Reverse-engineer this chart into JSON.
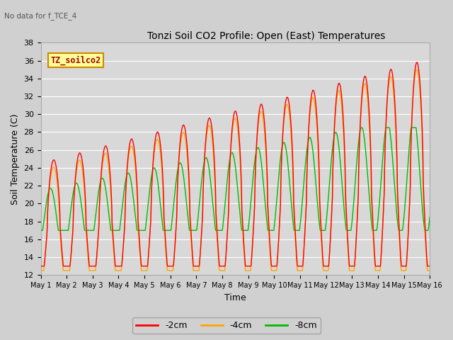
{
  "title": "Tonzi Soil CO2 Profile: Open (East) Temperatures",
  "no_data_text": "No data for f_TCE_4",
  "box_label": "TZ_soilco2",
  "xlabel": "Time",
  "ylabel": "Soil Temperature (C)",
  "ylim": [
    12,
    38
  ],
  "xlim": [
    0,
    15
  ],
  "xtick_labels": [
    "May 1",
    "May 2",
    "May 3",
    "May 4",
    "May 5",
    "May 6",
    "May 7",
    "May 8",
    "May 9",
    "May 10",
    "May 11",
    "May 12",
    "May 13",
    "May 14",
    "May 15",
    "May 16"
  ],
  "ytick_vals": [
    12,
    14,
    16,
    18,
    20,
    22,
    24,
    26,
    28,
    30,
    32,
    34,
    36,
    38
  ],
  "line_2cm_color": "#ff0000",
  "line_4cm_color": "#ffa500",
  "line_8cm_color": "#00bb00",
  "legend_labels": [
    "-2cm",
    "-4cm",
    "-8cm"
  ],
  "bg_color": "#d0d0d0",
  "plot_bg_color": "#d8d8d8",
  "num_days": 15,
  "points_per_day": 96
}
